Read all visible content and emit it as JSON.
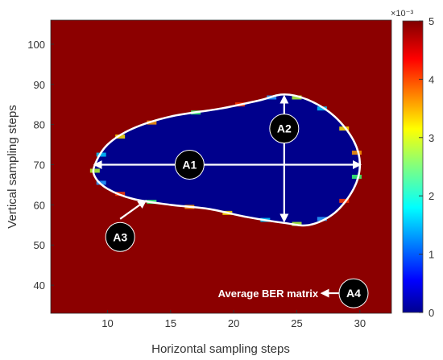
{
  "chart_data": {
    "type": "heatmap",
    "title": "",
    "xlabel": "Horizontal sampling steps",
    "ylabel": "Vertical sampling steps",
    "xlim": [
      5.5,
      32.5
    ],
    "ylim": [
      33,
      106
    ],
    "xticks": [
      "10",
      "15",
      "20",
      "25",
      "30"
    ],
    "yticks": [
      "40",
      "50",
      "60",
      "70",
      "80",
      "90",
      "100"
    ],
    "grid": false,
    "colorbar": {
      "range": [
        0,
        5
      ],
      "ticks": [
        "0",
        "1",
        "2",
        "3",
        "4",
        "5"
      ],
      "exponent_label": "×10⁻³",
      "colormap": "jet"
    },
    "background_value": 5,
    "low_region_value": 0,
    "low_region_boundary": [
      [
        9,
        70
      ],
      [
        10,
        75
      ],
      [
        12,
        79
      ],
      [
        15,
        82
      ],
      [
        19,
        84
      ],
      [
        22,
        86
      ],
      [
        24,
        87.5
      ],
      [
        26,
        86
      ],
      [
        28,
        82
      ],
      [
        29.5,
        76
      ],
      [
        30,
        70
      ],
      [
        29.5,
        64
      ],
      [
        28,
        58
      ],
      [
        26,
        55
      ],
      [
        24,
        55.5
      ],
      [
        21,
        57
      ],
      [
        18,
        59
      ],
      [
        15,
        60
      ],
      [
        12,
        61.5
      ],
      [
        10,
        64
      ],
      [
        9,
        67
      ]
    ],
    "annotations": [
      {
        "id": "A1",
        "label": "A1",
        "x": 16.5,
        "y": 70
      },
      {
        "id": "A2",
        "label": "A2",
        "x": 24,
        "y": 79
      },
      {
        "id": "A3",
        "label": "A3",
        "x": 11,
        "y": 52
      },
      {
        "id": "A4",
        "label": "A4",
        "x": 29.5,
        "y": 38,
        "text": "Average BER matrix"
      }
    ],
    "arrows": [
      {
        "name": "horizontal-width-arrow",
        "from": [
          9,
          70
        ],
        "to": [
          30,
          70
        ],
        "both_ends": true
      },
      {
        "name": "vertical-height-arrow",
        "from": [
          24,
          56
        ],
        "to": [
          24,
          87
        ],
        "both_ends": true
      },
      {
        "name": "contour-pointer-arrow",
        "from": [
          11,
          56.5
        ],
        "to": [
          13,
          61
        ],
        "both_ends": false
      },
      {
        "name": "matrix-pointer-arrow",
        "from": [
          28.5,
          38
        ],
        "to": [
          27,
          38
        ],
        "both_ends": false
      }
    ],
    "colors": {
      "high_ber": "#8c0000",
      "low_ber": "#00008c",
      "contour": "#ffffff",
      "badge": "#000000"
    }
  }
}
